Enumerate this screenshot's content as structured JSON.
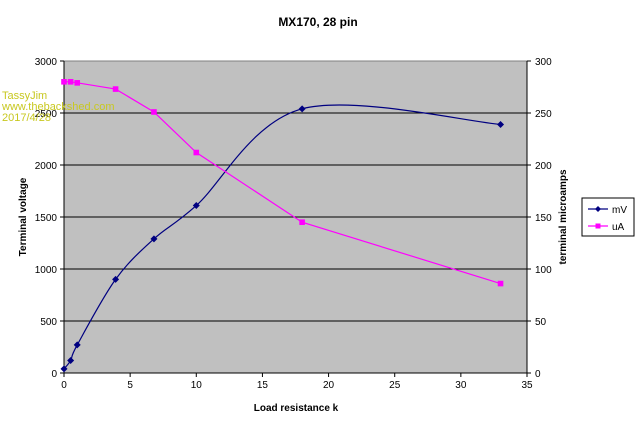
{
  "watermark": {
    "line1": "TassyJim",
    "line2": "www.thebackshed.com",
    "line3": "2017/4/28"
  },
  "colors": {
    "plot_bg": "#c0c0c0",
    "mv": "#000080",
    "ua": "#ff00ff",
    "grid": "#000000",
    "watermark": "#c8c820"
  },
  "chart_data": {
    "type": "scatter",
    "title": "MX170, 28 pin",
    "xlabel": "Load resistance k",
    "ylabel": "Terminal voltage",
    "y2label": "terminal microamps",
    "xlim": [
      0,
      35
    ],
    "ylim": [
      0,
      3000
    ],
    "y2lim": [
      0,
      300
    ],
    "x_ticks": [
      "0",
      "5",
      "10",
      "15",
      "20",
      "25",
      "30",
      "35"
    ],
    "y_ticks": [
      "0",
      "500",
      "1000",
      "1500",
      "2000",
      "2500",
      "3000"
    ],
    "y2_ticks": [
      "0",
      "50",
      "100",
      "150",
      "200",
      "250",
      "300"
    ],
    "grid": "horizontal",
    "legend_position": "right",
    "series": [
      {
        "name": "mV",
        "axis": "left",
        "marker": "diamond",
        "x": [
          0,
          0.5,
          1,
          3.9,
          6.8,
          10,
          18,
          33
        ],
        "y": [
          40,
          120,
          270,
          900,
          1290,
          1610,
          2540,
          2390
        ]
      },
      {
        "name": "uA",
        "axis": "right",
        "marker": "square",
        "x": [
          0,
          0.5,
          1,
          3.9,
          6.8,
          10,
          18,
          33
        ],
        "y": [
          280,
          280,
          279,
          273,
          251,
          212,
          145,
          86
        ]
      }
    ]
  }
}
